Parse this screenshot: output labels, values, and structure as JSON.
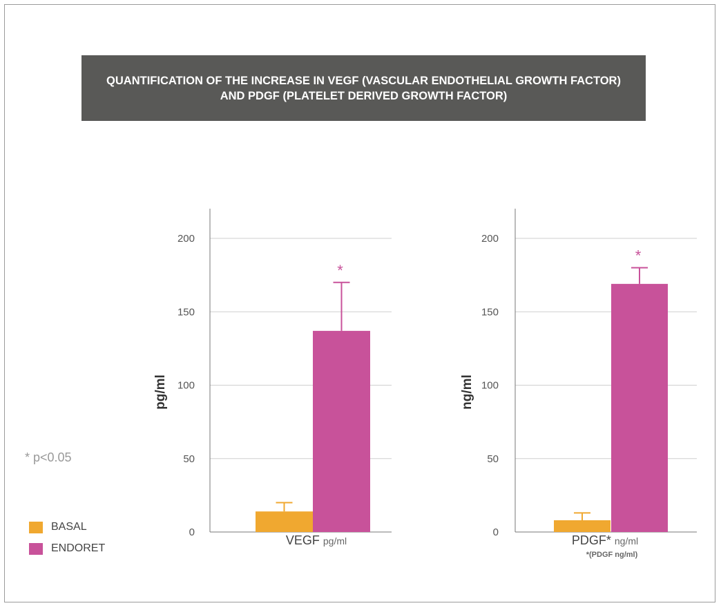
{
  "title": "QUANTIFICATION OF THE INCREASE IN VEGF (VASCULAR ENDOTHELIAL GROWTH FACTOR) AND PDGF (PLATELET DERIVED GROWTH FACTOR)",
  "significance_note": "* p<0.05",
  "legend": [
    {
      "label": "BASAL",
      "color": "#f0a830"
    },
    {
      "label": "ENDORET",
      "color": "#c8529a"
    }
  ],
  "colors": {
    "basal": "#f0a830",
    "endoret": "#c8529a",
    "banner": "#595957"
  },
  "chart_data": [
    {
      "type": "bar",
      "ylabel": "pg/ml",
      "xlabel_main": "VEGF",
      "xlabel_unit": "pg/ml",
      "xlabel_note": "",
      "ylim": [
        0,
        200
      ],
      "yticks": [
        "0",
        "50",
        "100",
        "150",
        "200"
      ],
      "grid": true,
      "series": [
        {
          "name": "BASAL",
          "value": 14,
          "error": 6
        },
        {
          "name": "ENDORET",
          "value": 137,
          "error": 33
        }
      ],
      "significance_marker": "*"
    },
    {
      "type": "bar",
      "ylabel": "ng/ml",
      "xlabel_main": "PDGF*",
      "xlabel_unit": "ng/ml",
      "xlabel_note": "*(PDGF ng/ml)",
      "ylim": [
        0,
        200
      ],
      "yticks": [
        "0",
        "50",
        "100",
        "150",
        "200"
      ],
      "grid": true,
      "series": [
        {
          "name": "BASAL",
          "value": 8,
          "error": 5
        },
        {
          "name": "ENDORET",
          "value": 169,
          "error": 11
        }
      ],
      "significance_marker": "*"
    }
  ]
}
